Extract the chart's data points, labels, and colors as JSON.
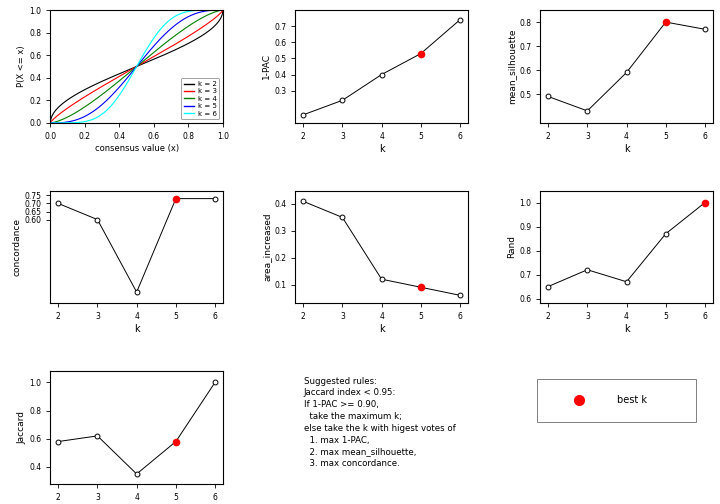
{
  "k_values": [
    2,
    3,
    4,
    5,
    6
  ],
  "one_pac": [
    0.15,
    0.24,
    0.4,
    0.53,
    0.74
  ],
  "mean_silhouette": [
    0.49,
    0.43,
    0.59,
    0.8,
    0.77
  ],
  "concordance": [
    0.7,
    0.6,
    0.15,
    0.73,
    0.73
  ],
  "area_increased": [
    0.41,
    0.35,
    0.12,
    0.09,
    0.06
  ],
  "rand": [
    0.65,
    0.72,
    0.67,
    0.87,
    1.0
  ],
  "jaccard": [
    0.58,
    0.62,
    0.35,
    0.58,
    1.0
  ],
  "best_k_pac": 5,
  "best_k_silhouette": 5,
  "best_k_concordance": 5,
  "best_k_area": 5,
  "best_k_rand": 6,
  "best_k_jaccard": 5,
  "cdf_colors": [
    "black",
    "red",
    "green",
    "blue",
    "cyan"
  ],
  "cdf_labels": [
    "k = 2",
    "k = 3",
    "k = 4",
    "k = 5",
    "k = 6"
  ],
  "cdf_shapes": [
    0.5,
    0.8,
    1.5,
    3.0,
    6.0
  ],
  "best_k_label": "best k",
  "dot_color": "#FF0000",
  "rules_text": "Suggested rules:\nJaccard index < 0.95:\nIf 1-PAC >= 0.90,\n  take the maximum k;\nelse take the k with higest votes of\n  1. max 1-PAC,\n  2. max mean_silhouette,\n  3. max concordance."
}
